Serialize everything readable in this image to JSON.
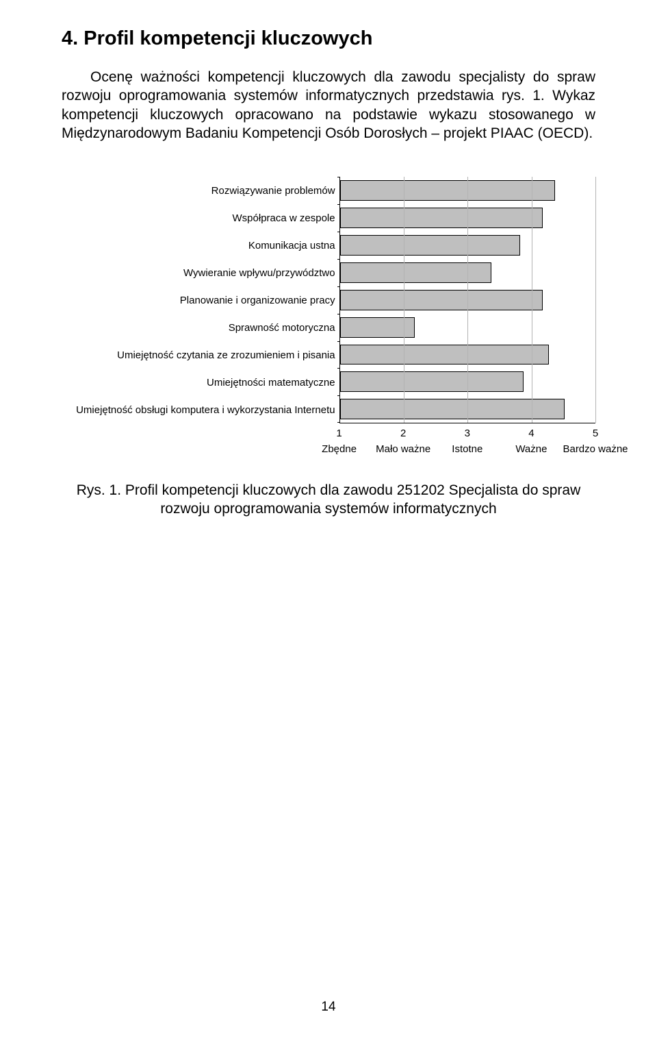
{
  "heading": "4. Profil kompetencji kluczowych",
  "para1": "Ocenę ważności kompetencji kluczowych dla zawodu specjalisty do spraw rozwoju oprogramowania systemów informatycznych przedstawia rys. 1. Wykaz kompetencji kluczowych opracowano na podstawie wykazu stosowanego w Międzynarodowym Badaniu Kompetencji Osób Dorosłych – projekt PIAAC (OECD).",
  "chart": {
    "type": "bar-horizontal",
    "x_min": 1,
    "x_max": 5,
    "bar_color": "#bfbfbf",
    "bar_border_color": "#000000",
    "grid_color": "#b3b3b3",
    "bar_row_height": 40,
    "series": [
      {
        "label": "Rozwiązywanie problemów",
        "value": 4.35
      },
      {
        "label": "Współpraca w zespole",
        "value": 4.15
      },
      {
        "label": "Komunikacja ustna",
        "value": 3.8
      },
      {
        "label": "Wywieranie wpływu/przywództwo",
        "value": 3.35
      },
      {
        "label": "Planowanie i organizowanie pracy",
        "value": 4.15
      },
      {
        "label": "Sprawność motoryczna",
        "value": 2.15
      },
      {
        "label": "Umiejętność czytania ze zrozumieniem i pisania",
        "value": 4.25
      },
      {
        "label": "Umiejętności matematyczne",
        "value": 3.85
      },
      {
        "label": "Umiejętność obsługi komputera i wykorzystania Internetu",
        "value": 4.5
      }
    ],
    "x_ticks": [
      {
        "num": "1",
        "label": "Zbędne"
      },
      {
        "num": "2",
        "label": "Mało ważne"
      },
      {
        "num": "3",
        "label": "Istotne"
      },
      {
        "num": "4",
        "label": "Ważne"
      },
      {
        "num": "5",
        "label": "Bardzo ważne"
      }
    ]
  },
  "caption": "Rys. 1. Profil kompetencji kluczowych dla zawodu 251202 Specjalista do spraw rozwoju oprogramowania systemów informatycznych",
  "page_number": "14"
}
